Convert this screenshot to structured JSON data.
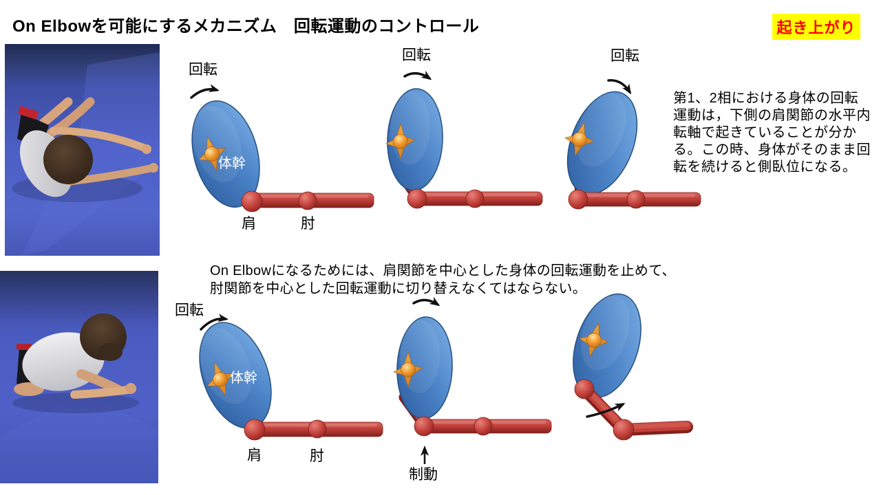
{
  "slide": {
    "title": "On Elbowを可能にするメカニズム　回転運動のコントロール",
    "badge": "起き上がり"
  },
  "labels": {
    "rotation": "回転",
    "trunk": "体幹",
    "shoulder": "肩",
    "elbow": "肘",
    "braking": "制動"
  },
  "notes": {
    "phase_note": "第1、2相における身体の回転運動は，下側の肩関節の水平内転軸で起きていることが分かる。この時、身体がそのまま回転を続けると側臥位になる。",
    "switch_note_line1": "On Elbowになるためには、肩関節を中心とした身体の回転運動を止めて、",
    "switch_note_line2": "肘関節を中心とした回転運動に切り替えなくてはならない。"
  },
  "colors": {
    "badge_bg": "#FFFF00",
    "badge_text": "#FF0000",
    "trunk_light": "#7FB2E8",
    "trunk_mid": "#4A82C6",
    "trunk_dark": "#2C5C9E",
    "trunk_edge": "#26507E",
    "arm_light": "#DA675E",
    "arm_main": "#C2403A",
    "arm_dark": "#83201B",
    "marker_light": "#FFE29E",
    "marker_main": "#F09A2E",
    "marker_dark": "#B05C0A",
    "arrow_black": "#111111",
    "trunk_label_text": "#FFFFFF",
    "body_text": "#000000",
    "mat_blue": "#4A5EC5",
    "mat_dark": "#2E3B6E"
  }
}
